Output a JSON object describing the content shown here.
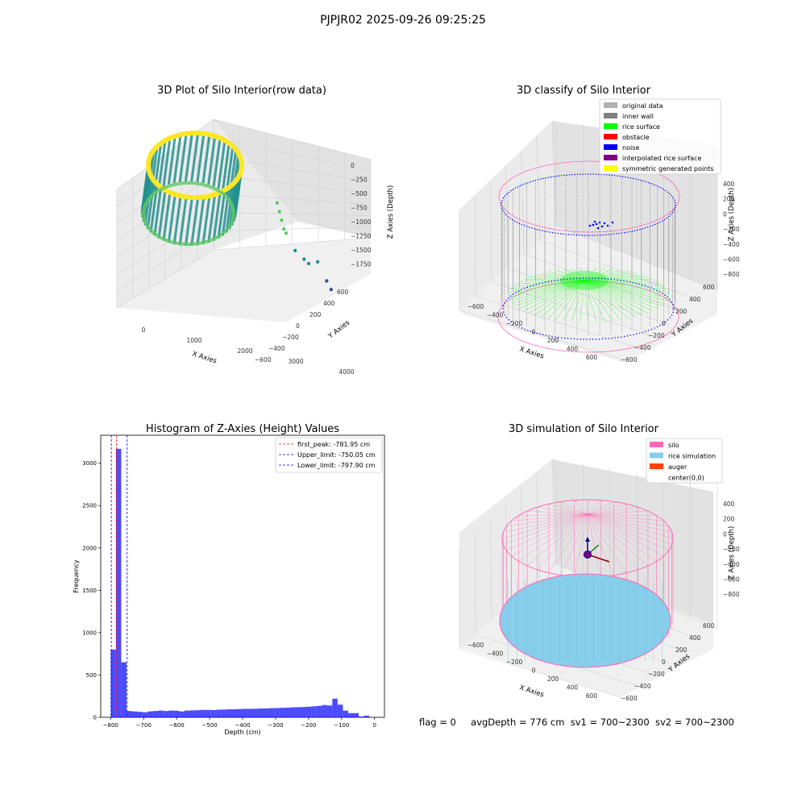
{
  "figure_title": "PJPJR02 2025-09-26 09:25:25",
  "status": {
    "flag": "flag = 0",
    "avg_depth": "avgDepth = 776 cm",
    "sv1": "sv1 = 700~2300",
    "sv2": "sv2 = 700~2300"
  },
  "colors": {
    "viridis_low": "#3b528b",
    "viridis_mid": "#21908d",
    "viridis_high": "#fde725",
    "inner_wall": "#808080",
    "rice_surface": "#00ff00",
    "noise": "#0000ff",
    "silo": "#ff69b4",
    "rice_sim": "#87ceeb",
    "hist_bar": "#0000ff"
  },
  "chart_data": [
    {
      "type": "scatter",
      "title": "3D Plot of Silo Interior(row data)",
      "xlabel": "X Axies",
      "ylabel": "Y Axies",
      "zlabel": "Z Axies (Depth)",
      "x_ticks": [
        "0",
        "1000",
        "2000",
        "3000",
        "4000"
      ],
      "y_ticks": [
        "600",
        "400",
        "200",
        "0",
        "−200",
        "−400",
        "−600"
      ],
      "z_ticks": [
        "0",
        "−250",
        "−500",
        "−750",
        "−1000",
        "−1250",
        "−1500",
        "−1750"
      ],
      "xlim": [
        -600,
        4500
      ],
      "zlim": [
        -1900,
        100
      ],
      "outliers": [
        {
          "x": 2600,
          "z": -800
        },
        {
          "x": 2650,
          "z": -900
        },
        {
          "x": 2700,
          "z": -1000
        },
        {
          "x": 2750,
          "z": -1100
        },
        {
          "x": 2800,
          "z": -1150
        },
        {
          "x": 3000,
          "z": -1350
        },
        {
          "x": 3200,
          "z": -1450
        },
        {
          "x": 3300,
          "z": -1500
        },
        {
          "x": 3500,
          "z": -1480
        },
        {
          "x": 3700,
          "z": -1700
        },
        {
          "x": 3800,
          "z": -1800
        }
      ]
    },
    {
      "type": "scatter",
      "title": "3D classify of Silo Interior",
      "xlabel": "X Axies",
      "ylabel": "Y Axies",
      "zlabel": "Z Axies (Depth)",
      "x_ticks": [
        "−600",
        "−400",
        "−200",
        "0",
        "200",
        "400",
        "600"
      ],
      "y_ticks": [
        "600",
        "400",
        "200",
        "0",
        "−200",
        "−400",
        "−600"
      ],
      "z_ticks": [
        "400",
        "200",
        "0",
        "−200",
        "−400",
        "−600",
        "−800"
      ],
      "legend": [
        "original data",
        "inner wall",
        "rice surface",
        "obstacle",
        "noise",
        "interpolated rice surface",
        "symmetric generated points"
      ],
      "legend_colors": [
        "#b0b0b0",
        "#808080",
        "#00ff00",
        "#ff0000",
        "#0000ff",
        "#800080",
        "#ffff00"
      ],
      "legend_position": "top-right"
    },
    {
      "type": "bar",
      "title": "Histogram of Z-Axies (Height) Values",
      "xlabel": "Depth (cm)",
      "ylabel": "Frequency",
      "xlim": [
        -830,
        30
      ],
      "ylim": [
        0,
        3330
      ],
      "x_ticks": [
        "−800",
        "−700",
        "−600",
        "−500",
        "−400",
        "−300",
        "−200",
        "−100",
        "0"
      ],
      "y_ticks": [
        "0",
        "500",
        "1000",
        "1500",
        "2000",
        "2500",
        "3000"
      ],
      "bin_width": 16,
      "bin_start": -800,
      "values": [
        800,
        3170,
        650,
        75,
        70,
        65,
        60,
        70,
        75,
        80,
        75,
        80,
        78,
        70,
        80,
        82,
        84,
        88,
        88,
        86,
        90,
        92,
        95,
        95,
        98,
        100,
        100,
        102,
        104,
        105,
        108,
        110,
        112,
        114,
        118,
        120,
        122,
        125,
        130,
        135,
        145,
        140,
        220,
        150,
        80,
        50,
        50,
        10,
        20
      ],
      "lines": [
        {
          "label": "first_peak: -781.95 cm",
          "x": -781.95,
          "color": "#ff0000"
        },
        {
          "label": "Upper_limit: -750.05 cm",
          "x": -750.05,
          "color": "#0000ff"
        },
        {
          "label": "Lower_limit: -797.90 cm",
          "x": -797.9,
          "color": "#0000ff"
        }
      ],
      "legend_position": "top-right"
    },
    {
      "type": "scatter",
      "title": "3D simulation of Silo Interior",
      "xlabel": "X Axies",
      "ylabel": "Y Axies",
      "zlabel": "Z Axies (Depth)",
      "x_ticks": [
        "−600",
        "−400",
        "−200",
        "0",
        "200",
        "400",
        "600"
      ],
      "y_ticks": [
        "600",
        "400",
        "200",
        "0",
        "−200",
        "−400",
        "−600"
      ],
      "z_ticks": [
        "400",
        "200",
        "0",
        "−200",
        "−400",
        "−600",
        "−800"
      ],
      "legend": [
        "silo",
        "rice simulation",
        "auger",
        "center(0,0)"
      ],
      "legend_colors": [
        "#ff69b4",
        "#87ceeb",
        "#ff4500",
        "#ffffff"
      ],
      "legend_position": "top-right"
    }
  ]
}
